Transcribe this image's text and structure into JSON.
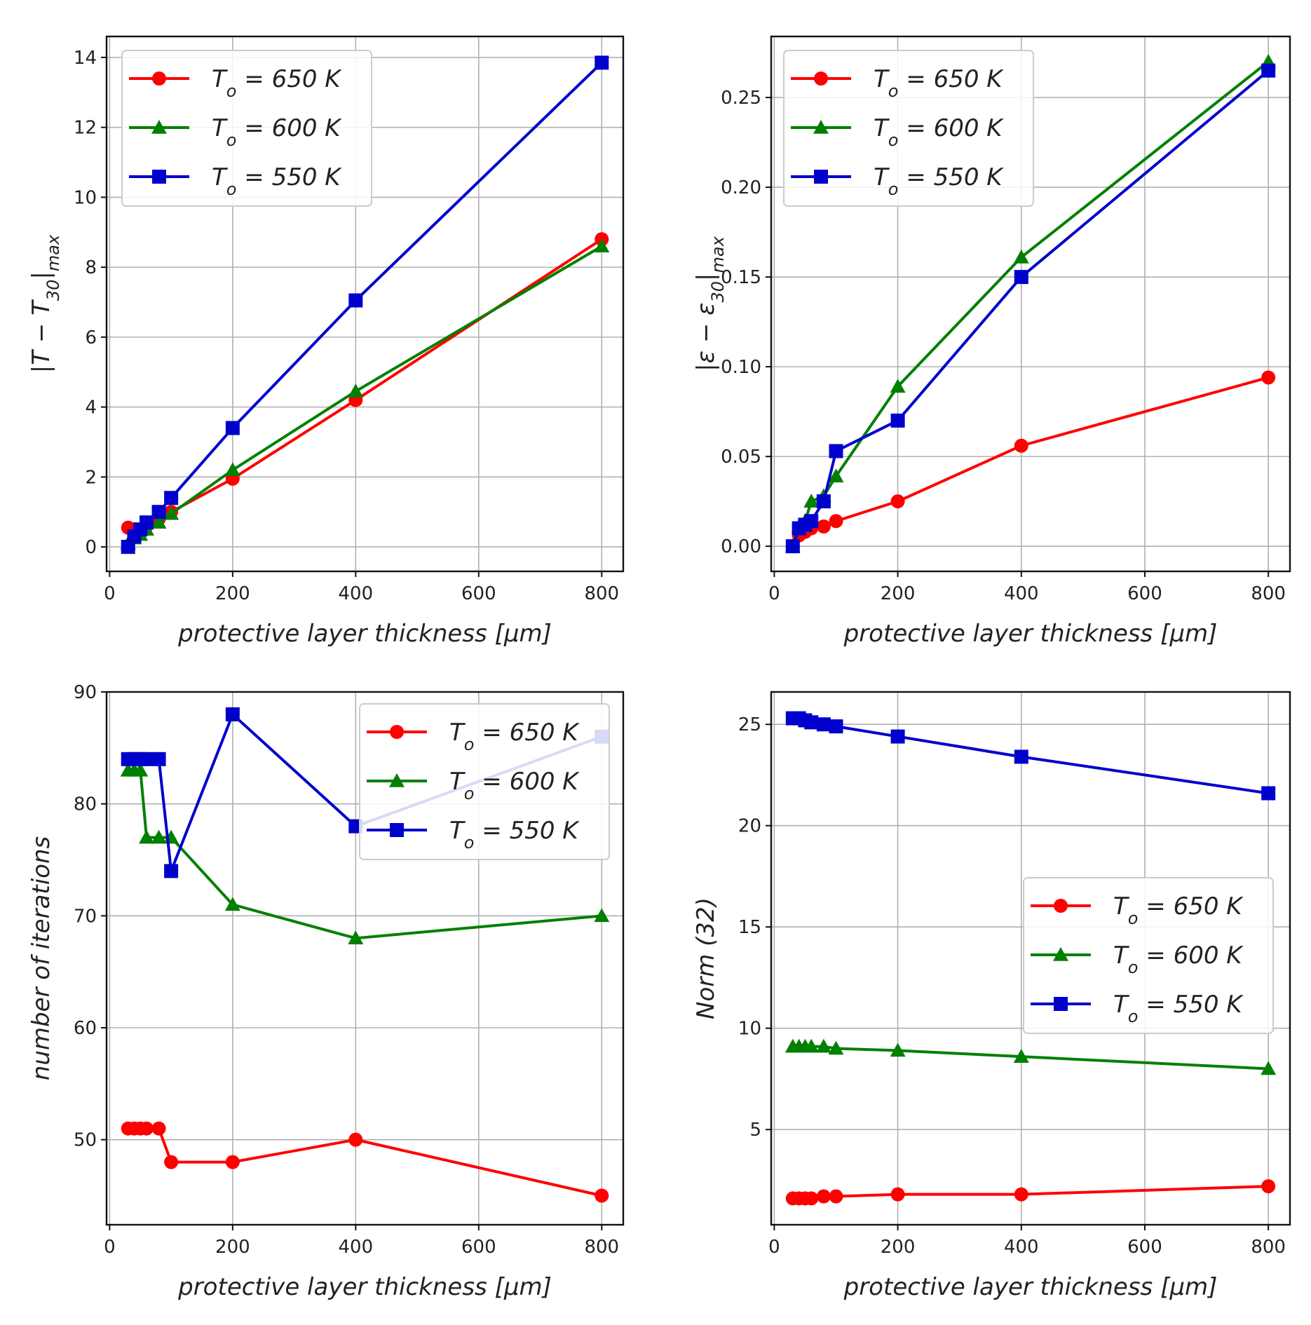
{
  "chart_data": [
    {
      "type": "line",
      "xlabel": "protective layer thickness [μm]",
      "ylabel": "|T − T30|max",
      "xlim": [
        -5,
        835
      ],
      "ylim": [
        -0.7,
        14.6
      ],
      "xticks": [
        0,
        200,
        400,
        600,
        800
      ],
      "yticks": [
        0,
        2,
        4,
        6,
        8,
        10,
        12,
        14
      ],
      "yticklabels": [
        "0",
        "2",
        "4",
        "6",
        "8",
        "10",
        "12",
        "14"
      ],
      "legend_position": "top-left",
      "x": [
        30,
        40,
        50,
        60,
        80,
        100,
        200,
        400,
        800
      ],
      "series": [
        {
          "name": "To = 650 K",
          "color": "#ff0000",
          "marker": "circle",
          "values": [
            0.55,
            0.5,
            0.45,
            0.6,
            0.8,
            1.0,
            1.95,
            4.2,
            8.8
          ]
        },
        {
          "name": "To = 600 K",
          "color": "#008000",
          "marker": "triangle",
          "values": [
            0.1,
            0.25,
            0.35,
            0.5,
            0.7,
            0.95,
            2.2,
            4.45,
            8.6
          ]
        },
        {
          "name": "To = 550 K",
          "color": "#0000cc",
          "marker": "square",
          "values": [
            0.0,
            0.3,
            0.5,
            0.7,
            1.0,
            1.4,
            3.4,
            7.05,
            13.85
          ]
        }
      ]
    },
    {
      "type": "line",
      "xlabel": "protective layer thickness [μm]",
      "ylabel": "|ε − ε30|max",
      "xlim": [
        -5,
        835
      ],
      "ylim": [
        -0.014,
        0.284
      ],
      "xticks": [
        0,
        200,
        400,
        600,
        800
      ],
      "yticks": [
        0,
        0.05,
        0.1,
        0.15,
        0.2,
        0.25
      ],
      "yticklabels": [
        "0.00",
        "0.05",
        "0.10",
        "0.15",
        "0.20",
        "0.25"
      ],
      "legend_position": "top-left",
      "x": [
        30,
        40,
        50,
        60,
        80,
        100,
        200,
        400,
        800
      ],
      "series": [
        {
          "name": "To = 650 K",
          "color": "#ff0000",
          "marker": "circle",
          "values": [
            0.0,
            0.006,
            0.008,
            0.01,
            0.011,
            0.014,
            0.025,
            0.056,
            0.094
          ]
        },
        {
          "name": "To = 600 K",
          "color": "#008000",
          "marker": "triangle",
          "values": [
            0.0,
            0.011,
            0.014,
            0.025,
            0.028,
            0.039,
            0.089,
            0.161,
            0.27
          ]
        },
        {
          "name": "To = 550 K",
          "color": "#0000cc",
          "marker": "square",
          "values": [
            0.0,
            0.01,
            0.012,
            0.014,
            0.025,
            0.053,
            0.07,
            0.15,
            0.265
          ]
        }
      ]
    },
    {
      "type": "line",
      "xlabel": "protective layer thickness [μm]",
      "ylabel": "number of iterations",
      "xlim": [
        -5,
        835
      ],
      "ylim": [
        42.4,
        90.0
      ],
      "xticks": [
        0,
        200,
        400,
        600,
        800
      ],
      "yticks": [
        50,
        60,
        70,
        80,
        90
      ],
      "yticklabels": [
        "50",
        "60",
        "70",
        "80",
        "90"
      ],
      "legend_position": "top-right",
      "x": [
        30,
        40,
        50,
        60,
        80,
        100,
        200,
        400,
        800
      ],
      "series": [
        {
          "name": "To = 650 K",
          "color": "#ff0000",
          "marker": "circle",
          "values": [
            51,
            51,
            51,
            51,
            51,
            48,
            48,
            50,
            45
          ]
        },
        {
          "name": "To = 600 K",
          "color": "#008000",
          "marker": "triangle",
          "values": [
            83,
            83,
            83,
            77,
            77,
            77,
            71,
            68,
            70
          ]
        },
        {
          "name": "To = 550 K",
          "color": "#0000cc",
          "marker": "square",
          "values": [
            84,
            84,
            84,
            84,
            84,
            74,
            88,
            78,
            86
          ]
        }
      ]
    },
    {
      "type": "line",
      "xlabel": "protective layer thickness [μm]",
      "ylabel": "Norm (32)",
      "xlim": [
        -5,
        835
      ],
      "ylim": [
        0.3,
        26.6
      ],
      "xticks": [
        0,
        200,
        400,
        600,
        800
      ],
      "yticks": [
        5,
        10,
        15,
        20,
        25
      ],
      "yticklabels": [
        "5",
        "10",
        "15",
        "20",
        "25"
      ],
      "legend_position": "center-right",
      "x": [
        30,
        40,
        50,
        60,
        80,
        100,
        200,
        400,
        800
      ],
      "series": [
        {
          "name": "To = 650 K",
          "color": "#ff0000",
          "marker": "circle",
          "values": [
            1.6,
            1.6,
            1.6,
            1.6,
            1.7,
            1.7,
            1.8,
            1.8,
            2.2
          ]
        },
        {
          "name": "To = 600 K",
          "color": "#008000",
          "marker": "triangle",
          "values": [
            9.1,
            9.1,
            9.1,
            9.1,
            9.1,
            9.0,
            8.9,
            8.6,
            8.0
          ]
        },
        {
          "name": "To = 550 K",
          "color": "#0000cc",
          "marker": "square",
          "values": [
            25.3,
            25.3,
            25.2,
            25.1,
            25.0,
            24.9,
            24.4,
            23.4,
            21.6
          ]
        }
      ]
    }
  ]
}
